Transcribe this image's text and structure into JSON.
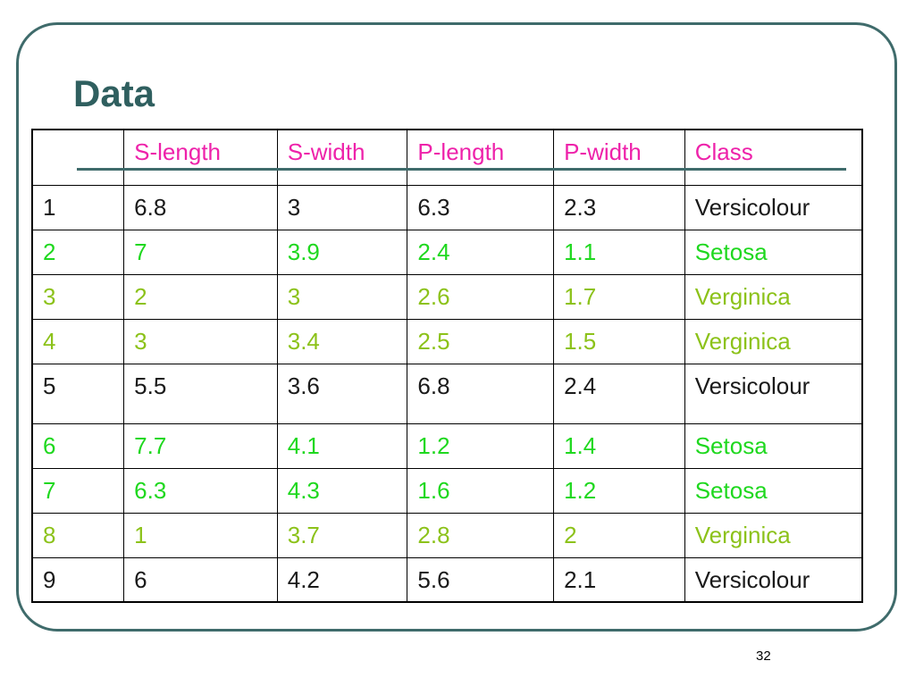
{
  "slide": {
    "title": "Data",
    "page_number": "32"
  },
  "table": {
    "headers": [
      "",
      "S-length",
      "S-width",
      "P-length",
      "P-width",
      "Class"
    ],
    "rows": [
      [
        "1",
        "6.8",
        "3",
        "6.3",
        "2.3",
        "Versicolour"
      ],
      [
        "2",
        "7",
        "3.9",
        "2.4",
        "1.1",
        "Setosa"
      ],
      [
        "3",
        "2",
        "3",
        "2.6",
        "1.7",
        "Verginica"
      ],
      [
        "4",
        "3",
        "3.4",
        "2.5",
        "1.5",
        "Verginica"
      ],
      [
        "5",
        "5.5",
        "3.6",
        "6.8",
        "2.4",
        "Versicolour"
      ],
      [
        "6",
        "7.7",
        "4.1",
        "1.2",
        "1.4",
        "Setosa"
      ],
      [
        "7",
        "6.3",
        "4.3",
        "1.6",
        "1.2",
        "Setosa"
      ],
      [
        "8",
        "1",
        "3.7",
        "2.8",
        "2",
        "Verginica"
      ],
      [
        "9",
        "6",
        "4.2",
        "5.6",
        "2.1",
        "Versicolour"
      ]
    ]
  },
  "colors": {
    "title": "#2f5f5f",
    "frame": "#3f6b6b",
    "header_text": "#ee22aa",
    "versicolour": "#1a1a1a",
    "setosa": "#1fd81f",
    "verginica": "#8cc21a"
  }
}
